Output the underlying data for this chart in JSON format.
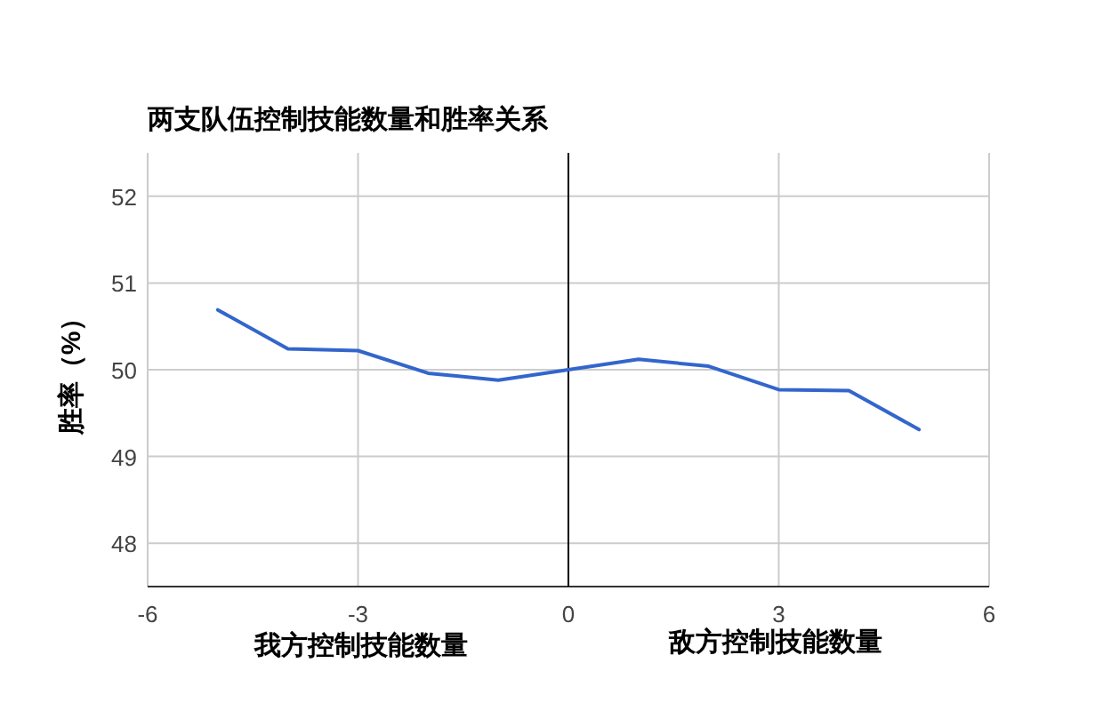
{
  "chart_data": {
    "type": "line",
    "title": "两支队伍控制技能数量和胜率关系",
    "ylabel": "胜率（%）",
    "annotations": [
      "我方控制技能数量",
      "敌方控制技能数量"
    ],
    "x": [
      -5,
      -4,
      -3,
      -2,
      -1,
      0,
      1,
      2,
      3,
      4,
      5
    ],
    "series": [
      {
        "color": "#3366cc",
        "values": [
          50.69,
          50.24,
          50.22,
          49.96,
          49.88,
          50.0,
          50.12,
          50.04,
          49.77,
          49.76,
          49.31
        ]
      }
    ],
    "xlim": [
      -6,
      6
    ],
    "xticks": [
      -6,
      -3,
      0,
      3,
      6
    ],
    "ylim": [
      47.5,
      52.5
    ],
    "yticks": [
      48,
      49,
      50,
      51,
      52
    ],
    "grid": true,
    "marker": "none",
    "line_style": "solid",
    "ref_lines": [
      {
        "axis": "x",
        "value": 0,
        "color": "#000000"
      }
    ]
  }
}
